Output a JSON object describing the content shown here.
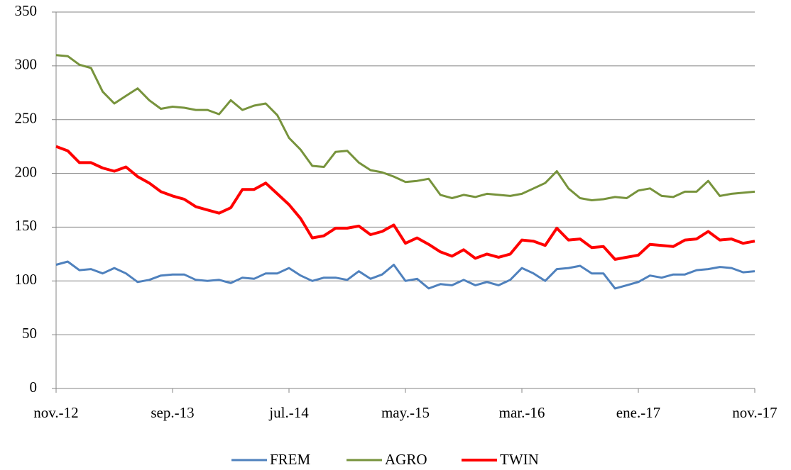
{
  "chart_data": {
    "type": "line",
    "categories": [
      "nov.-12",
      null,
      null,
      null,
      null,
      null,
      null,
      null,
      null,
      null,
      "sep.-13",
      null,
      null,
      null,
      null,
      null,
      null,
      null,
      null,
      null,
      "jul.-14",
      null,
      null,
      null,
      null,
      null,
      null,
      null,
      null,
      null,
      "may.-15",
      null,
      null,
      null,
      null,
      null,
      null,
      null,
      null,
      null,
      "mar.-16",
      null,
      null,
      null,
      null,
      null,
      null,
      null,
      null,
      null,
      "ene.-17",
      null,
      null,
      null,
      null,
      null,
      null,
      null,
      null,
      null,
      "nov.-17"
    ],
    "series": [
      {
        "name": "FREM",
        "color": "#4f81bd",
        "values": [
          115,
          118,
          110,
          111,
          107,
          112,
          107,
          99,
          101,
          105,
          106,
          106,
          101,
          100,
          101,
          98,
          103,
          102,
          107,
          107,
          112,
          105,
          100,
          103,
          103,
          101,
          109,
          102,
          106,
          115,
          100,
          102,
          93,
          97,
          96,
          101,
          96,
          99,
          96,
          101,
          112,
          107,
          100,
          111,
          112,
          114,
          107,
          107,
          93,
          96,
          99,
          105,
          103,
          106,
          106,
          110,
          111,
          113,
          112,
          108,
          109
        ]
      },
      {
        "name": "AGRO",
        "color": "#77933c",
        "values": [
          310,
          309,
          301,
          298,
          276,
          265,
          272,
          279,
          268,
          260,
          262,
          261,
          259,
          259,
          255,
          268,
          259,
          263,
          265,
          254,
          233,
          222,
          207,
          206,
          220,
          221,
          210,
          203,
          201,
          197,
          192,
          193,
          195,
          180,
          177,
          180,
          178,
          181,
          180,
          179,
          181,
          186,
          191,
          202,
          186,
          177,
          175,
          176,
          178,
          177,
          184,
          186,
          179,
          178,
          183,
          183,
          193,
          179,
          181,
          182,
          183
        ]
      },
      {
        "name": "TWIN",
        "color": "#ff0000",
        "values": [
          225,
          221,
          210,
          210,
          205,
          202,
          206,
          197,
          191,
          183,
          179,
          176,
          169,
          166,
          163,
          168,
          185,
          185,
          191,
          181,
          171,
          158,
          140,
          142,
          149,
          149,
          151,
          143,
          146,
          152,
          135,
          140,
          134,
          127,
          123,
          129,
          121,
          125,
          122,
          125,
          138,
          137,
          133,
          149,
          138,
          139,
          131,
          132,
          120,
          122,
          124,
          134,
          133,
          132,
          138,
          139,
          146,
          138,
          139,
          135,
          137
        ]
      }
    ],
    "ylim": [
      0,
      350
    ],
    "yticks": [
      0,
      50,
      100,
      150,
      200,
      250,
      300,
      350
    ],
    "grid": true,
    "legend": "bottom"
  }
}
